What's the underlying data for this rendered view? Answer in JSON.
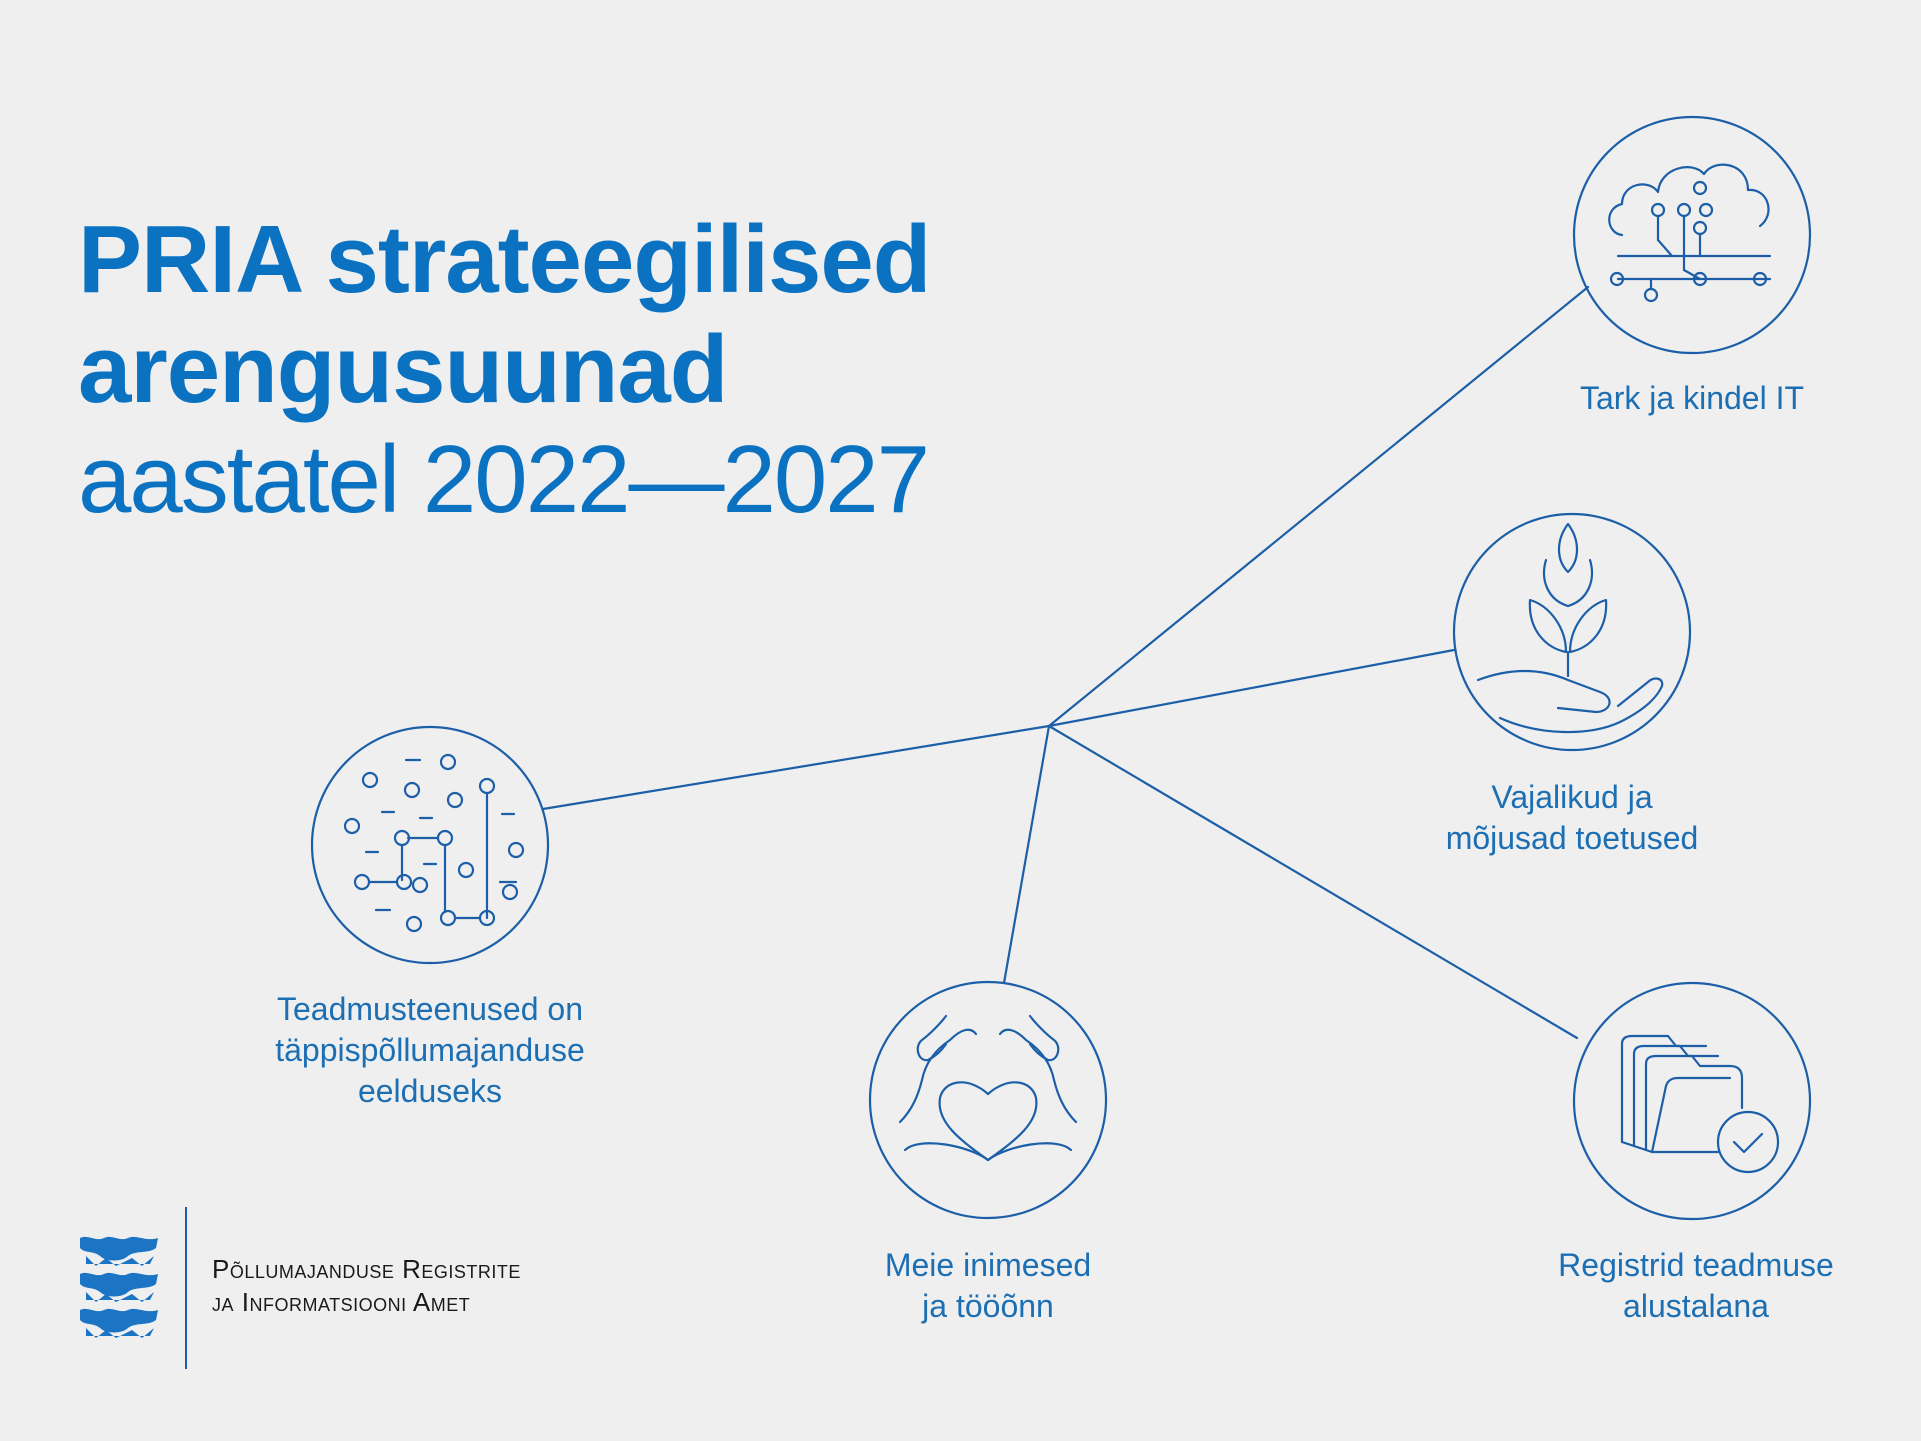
{
  "title": {
    "line1": "PRIA strateegilised",
    "line2": "arengusuunad",
    "line3": "aastatel 2022—2027"
  },
  "nodes": {
    "it": {
      "line1": "Tark ja kindel IT",
      "icon": "cloud-circuit-icon"
    },
    "toetused": {
      "line1": "Vajalikud ja",
      "line2": "mõjusad toetused",
      "icon": "plant-in-hand-icon"
    },
    "teadmus": {
      "line1": "Teadmusteenused on",
      "line2": "täppispõllumajanduse",
      "line3": "eelduseks",
      "icon": "data-network-icon"
    },
    "inimesed": {
      "line1": "Meie inimesed",
      "line2": "ja tööõnn",
      "icon": "heart-hands-icon"
    },
    "registrid": {
      "line1": "Registrid teadmuse",
      "line2": "alustalana",
      "icon": "folder-check-icon"
    }
  },
  "logo": {
    "line1": "Põllumajanduse Registrite",
    "line2": "ja Informatsiooni Amet",
    "icon": "estonian-coat-of-arms-icon"
  },
  "colors": {
    "accent": "#0b72c2",
    "line": "#1c5fa8",
    "background": "#efefef"
  }
}
